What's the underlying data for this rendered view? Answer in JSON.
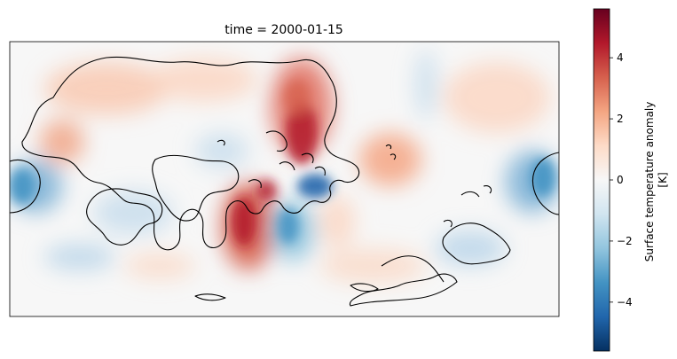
{
  "figure": {
    "title": "time = 2000-01-15",
    "colorbar": {
      "label_line1": "Surface temperature anomaly",
      "label_line2": "[K]",
      "range": [
        -5.6,
        5.6
      ],
      "ticks": [
        {
          "value": 4,
          "label": "4"
        },
        {
          "value": 2,
          "label": "2"
        },
        {
          "value": 0,
          "label": "0"
        },
        {
          "value": -2,
          "label": "−2"
        },
        {
          "value": -4,
          "label": "−4"
        }
      ],
      "colors": [
        "#053061",
        "#2166ac",
        "#4393c3",
        "#92c5de",
        "#d1e5f0",
        "#f7f7f7",
        "#fddbc7",
        "#f4a582",
        "#d6604d",
        "#b2182b",
        "#67001f"
      ]
    },
    "map": {
      "projection": "rotated-pole-plate-carree",
      "background_color": "#f7f7f7",
      "coastline_color": "#000000"
    }
  }
}
